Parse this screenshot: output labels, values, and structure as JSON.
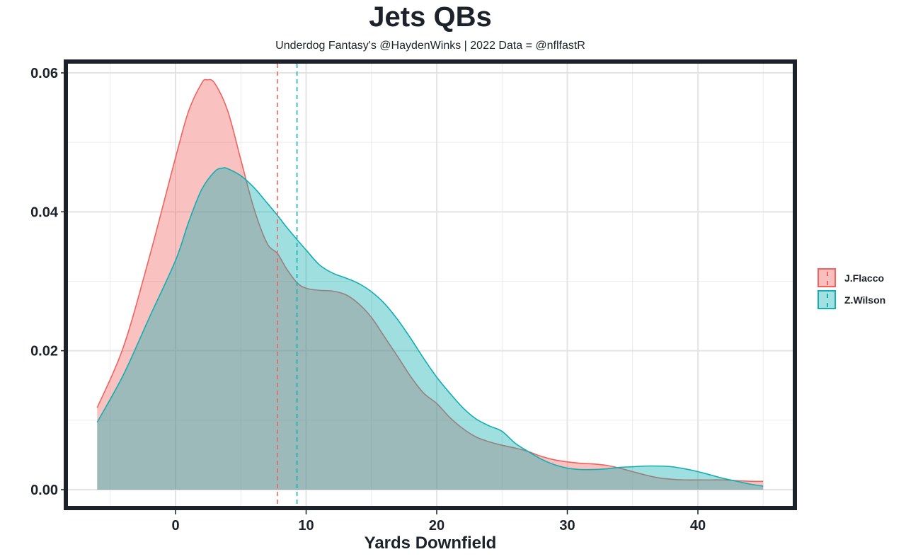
{
  "chart_data": {
    "type": "area",
    "subtype": "density",
    "title": "Jets QBs",
    "subtitle": "Underdog Fantasy's @HaydenWinks | 2022 Data = @nflfastR",
    "xlabel": "Yards Downfield",
    "ylabel": "",
    "xlim": [
      -6,
      45
    ],
    "ylim": [
      0,
      0.06
    ],
    "x_ticks": [
      0,
      10,
      20,
      30,
      40
    ],
    "x_tick_labels": [
      "0",
      "10",
      "20",
      "30",
      "40"
    ],
    "y_ticks": [
      0,
      0.02,
      0.04,
      0.06
    ],
    "y_tick_labels": [
      "0.00",
      "0.02",
      "0.04",
      "0.06"
    ],
    "grid": true,
    "legend_position": "right",
    "series": [
      {
        "name": "J.Flacco",
        "color": "#F0635F",
        "fill": "#F8BFBE",
        "mean": 7.8,
        "points": [
          [
            -6,
            0.0118
          ],
          [
            -4,
            0.0205
          ],
          [
            -2,
            0.0335
          ],
          [
            0,
            0.0478
          ],
          [
            1,
            0.0545
          ],
          [
            2,
            0.0585
          ],
          [
            2.4,
            0.059
          ],
          [
            3,
            0.0585
          ],
          [
            4,
            0.0545
          ],
          [
            5,
            0.0475
          ],
          [
            6,
            0.0405
          ],
          [
            7,
            0.0355
          ],
          [
            7.8,
            0.034
          ],
          [
            8.5,
            0.0318
          ],
          [
            9.3,
            0.0298
          ],
          [
            10,
            0.029
          ],
          [
            11,
            0.0287
          ],
          [
            12,
            0.0286
          ],
          [
            13,
            0.0281
          ],
          [
            14,
            0.0268
          ],
          [
            15,
            0.0248
          ],
          [
            16,
            0.022
          ],
          [
            17,
            0.0192
          ],
          [
            18,
            0.0163
          ],
          [
            19,
            0.0139
          ],
          [
            20,
            0.0124
          ],
          [
            21,
            0.0104
          ],
          [
            22,
            0.0088
          ],
          [
            23,
            0.0076
          ],
          [
            24,
            0.0069
          ],
          [
            25,
            0.0064
          ],
          [
            26,
            0.006
          ],
          [
            27,
            0.0055
          ],
          [
            28,
            0.0048
          ],
          [
            29,
            0.0043
          ],
          [
            30,
            0.004
          ],
          [
            31,
            0.0038
          ],
          [
            32,
            0.0037
          ],
          [
            33,
            0.0035
          ],
          [
            34,
            0.0031
          ],
          [
            35,
            0.0026
          ],
          [
            36,
            0.0021
          ],
          [
            37,
            0.0017
          ],
          [
            38,
            0.0015
          ],
          [
            39,
            0.0014
          ],
          [
            40,
            0.0014
          ],
          [
            41,
            0.0014
          ],
          [
            42,
            0.0014
          ],
          [
            43,
            0.0013
          ],
          [
            44,
            0.0012
          ],
          [
            45,
            0.0012
          ]
        ]
      },
      {
        "name": "Z.Wilson",
        "color": "#12AEB2",
        "fill": "#A3E0E1",
        "mean": 9.3,
        "points": [
          [
            -6,
            0.0097
          ],
          [
            -4,
            0.0165
          ],
          [
            -2,
            0.0248
          ],
          [
            0,
            0.033
          ],
          [
            1,
            0.0385
          ],
          [
            2,
            0.0432
          ],
          [
            3,
            0.0458
          ],
          [
            3.6,
            0.0463
          ],
          [
            4,
            0.0462
          ],
          [
            5,
            0.0452
          ],
          [
            6,
            0.0435
          ],
          [
            7,
            0.0413
          ],
          [
            7.8,
            0.0395
          ],
          [
            8.5,
            0.0378
          ],
          [
            9.3,
            0.036
          ],
          [
            10,
            0.0345
          ],
          [
            11,
            0.0324
          ],
          [
            12,
            0.0312
          ],
          [
            13,
            0.0305
          ],
          [
            14,
            0.0297
          ],
          [
            15,
            0.0285
          ],
          [
            16,
            0.0268
          ],
          [
            17,
            0.0245
          ],
          [
            18,
            0.0218
          ],
          [
            19,
            0.0189
          ],
          [
            20,
            0.0162
          ],
          [
            21,
            0.0139
          ],
          [
            22,
            0.0118
          ],
          [
            23,
            0.0102
          ],
          [
            24,
            0.0092
          ],
          [
            25,
            0.0084
          ],
          [
            26,
            0.0067
          ],
          [
            27,
            0.0055
          ],
          [
            28,
            0.0044
          ],
          [
            29,
            0.0036
          ],
          [
            30,
            0.0031
          ],
          [
            31,
            0.0029
          ],
          [
            32,
            0.0029
          ],
          [
            33,
            0.003
          ],
          [
            34,
            0.0032
          ],
          [
            35,
            0.0033
          ],
          [
            36,
            0.0034
          ],
          [
            37,
            0.0034
          ],
          [
            38,
            0.0033
          ],
          [
            39,
            0.003
          ],
          [
            40,
            0.0026
          ],
          [
            41,
            0.0021
          ],
          [
            42,
            0.0016
          ],
          [
            43,
            0.0012
          ],
          [
            44,
            0.0008
          ],
          [
            45,
            0.0005
          ]
        ]
      }
    ]
  },
  "legend": {
    "items": [
      {
        "label": "J.Flacco"
      },
      {
        "label": "Z.Wilson"
      }
    ]
  }
}
